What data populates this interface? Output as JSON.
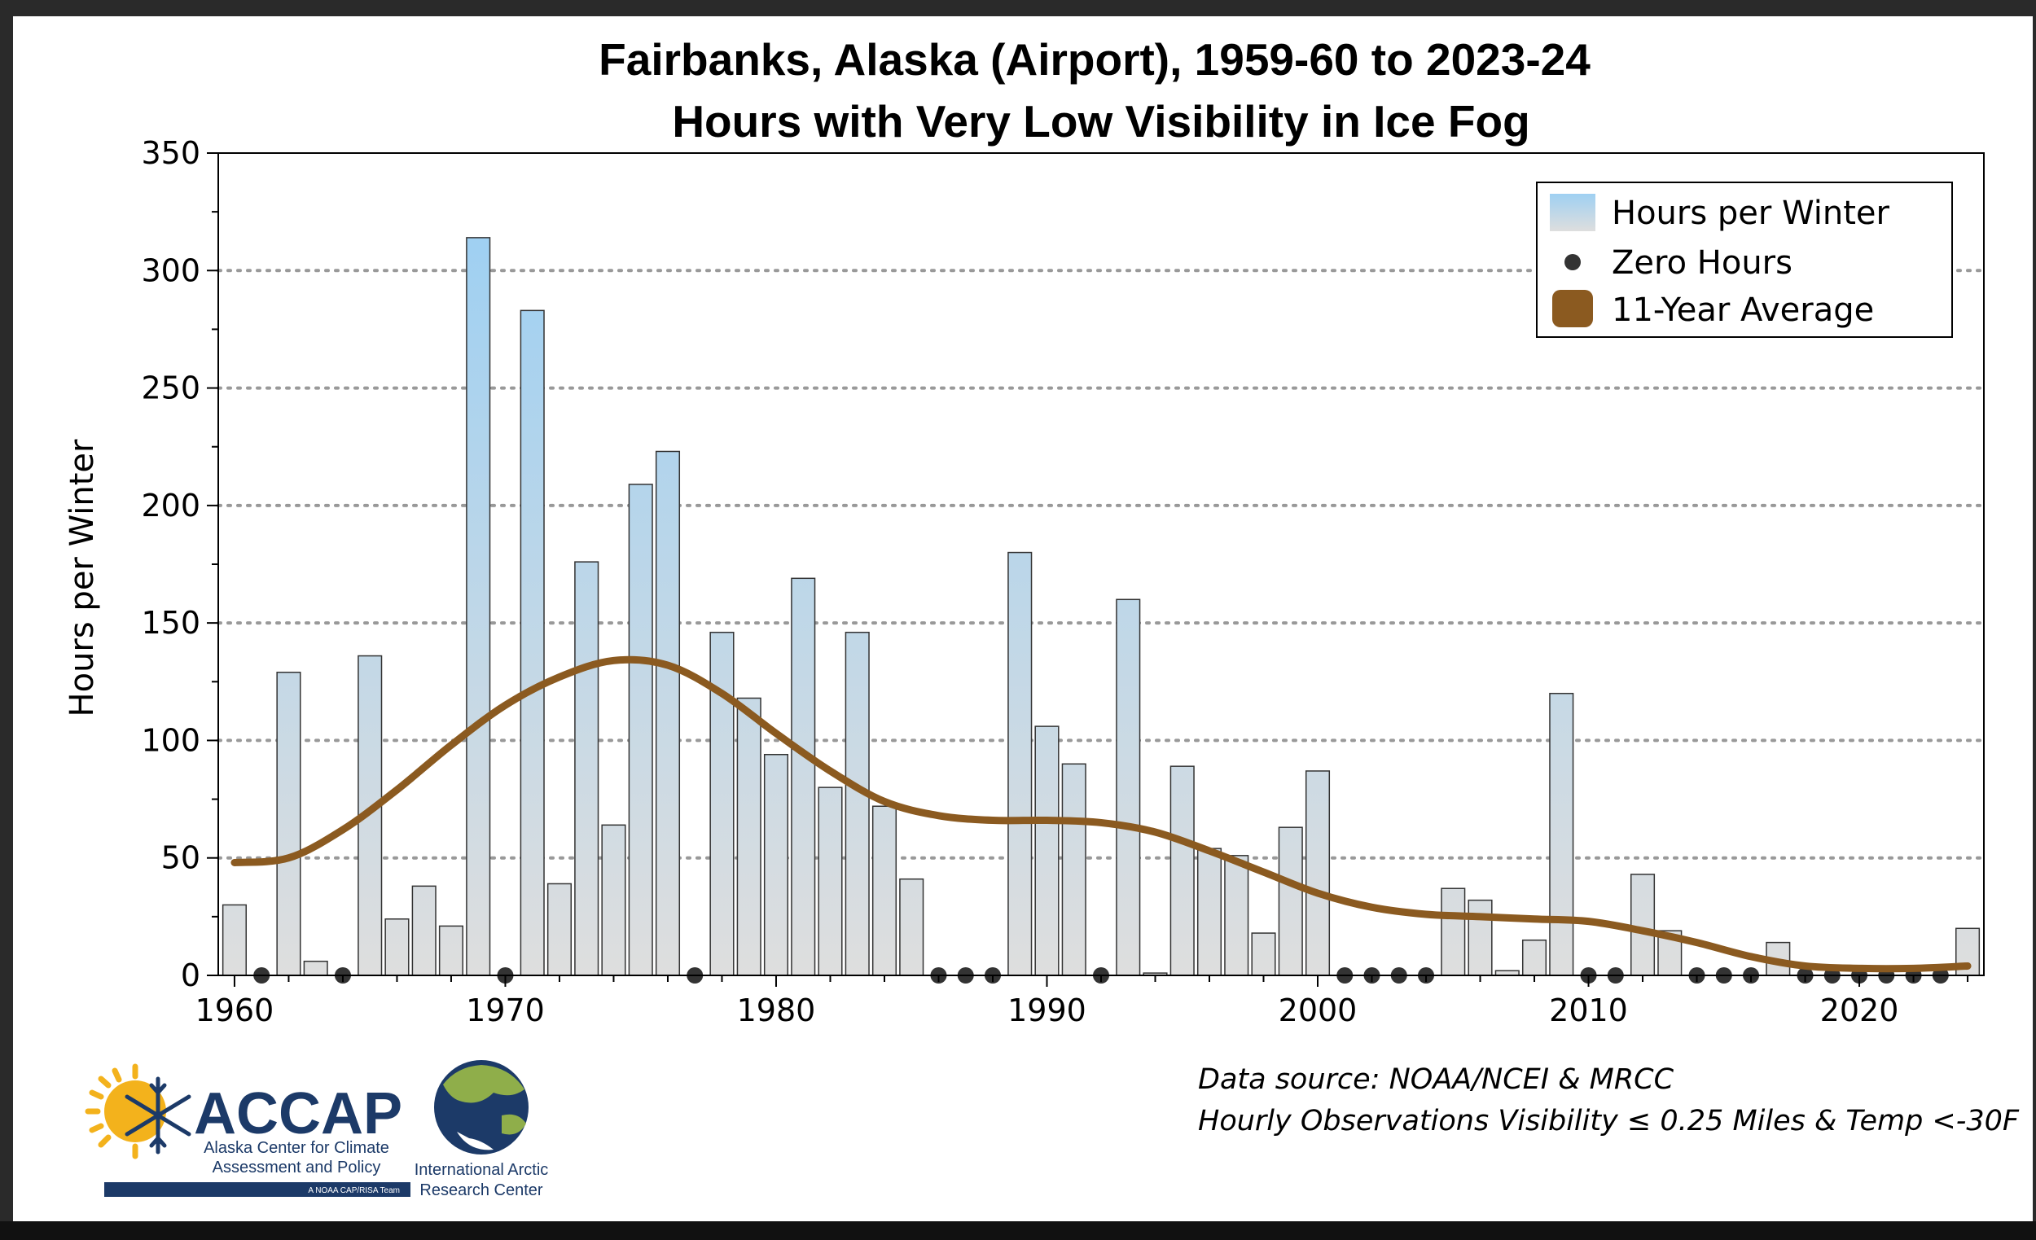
{
  "chart_data": {
    "type": "bar",
    "title": [
      "Fairbanks, Alaska (Airport), 1959-60 to 2023-24",
      "Hours with Very Low Visibility in Ice Fog"
    ],
    "ylabel": "Hours per Winter",
    "xlabel": "",
    "ylim": [
      0,
      350
    ],
    "xlim": [
      1959.4,
      2024.6
    ],
    "yticks": [
      0,
      50,
      100,
      150,
      200,
      250,
      300,
      350
    ],
    "xticks": [
      1960,
      1970,
      1980,
      1990,
      2000,
      2010,
      2020
    ],
    "grid": "horizontal dotted",
    "legend": {
      "placement": "top-right",
      "entries": [
        "Hours per Winter",
        "Zero Hours",
        "11-Year Average"
      ]
    },
    "series": [
      {
        "name": "Hours per Winter",
        "x": [
          1960,
          1961,
          1962,
          1963,
          1964,
          1965,
          1966,
          1967,
          1968,
          1969,
          1970,
          1971,
          1972,
          1973,
          1974,
          1975,
          1976,
          1977,
          1978,
          1979,
          1980,
          1981,
          1982,
          1983,
          1984,
          1985,
          1986,
          1987,
          1988,
          1989,
          1990,
          1991,
          1992,
          1993,
          1994,
          1995,
          1996,
          1997,
          1998,
          1999,
          2000,
          2001,
          2002,
          2003,
          2004,
          2005,
          2006,
          2007,
          2008,
          2009,
          2010,
          2011,
          2012,
          2013,
          2014,
          2015,
          2016,
          2017,
          2018,
          2019,
          2020,
          2021,
          2022,
          2023,
          2024
        ],
        "values": [
          30,
          0,
          129,
          6,
          0,
          136,
          24,
          38,
          21,
          314,
          0,
          283,
          39,
          176,
          64,
          209,
          223,
          0,
          146,
          118,
          94,
          169,
          80,
          146,
          72,
          41,
          0,
          0,
          0,
          180,
          106,
          90,
          0,
          160,
          1,
          89,
          54,
          51,
          18,
          63,
          87,
          0,
          0,
          0,
          0,
          37,
          32,
          2,
          15,
          120,
          0,
          0,
          43,
          19,
          0,
          0,
          0,
          14,
          0,
          0,
          0,
          0,
          0,
          0,
          20
        ]
      },
      {
        "name": "11-Year Average",
        "x": [
          1960,
          1962,
          1964,
          1966,
          1968,
          1970,
          1972,
          1974,
          1976,
          1978,
          1980,
          1982,
          1984,
          1986,
          1988,
          1990,
          1992,
          1994,
          1996,
          1998,
          2000,
          2002,
          2004,
          2006,
          2008,
          2010,
          2012,
          2014,
          2016,
          2018,
          2020,
          2022,
          2024
        ],
        "values": [
          48,
          50,
          62,
          79,
          98,
          115,
          127,
          134,
          132,
          120,
          103,
          87,
          74,
          68,
          66,
          66,
          65,
          61,
          53,
          44,
          35,
          29,
          26,
          25,
          24,
          23,
          19,
          14,
          8,
          4,
          3,
          3,
          4
        ]
      }
    ],
    "colors": {
      "bar_top": "#9fd0f2",
      "bar_bottom": "#dedede",
      "bar_edge": "#333333",
      "zero_marker": "#333333",
      "average_line": "#8b5a20",
      "grid": "#999999"
    }
  },
  "source": {
    "line1": "Data source: NOAA/NCEI & MRCC",
    "line2": "Hourly Observations Visibility ≤ 0.25 Miles & Temp <-30F"
  },
  "logos": {
    "accap": {
      "name": "ACCAP",
      "line1": "Alaska Center for Climate",
      "line2": "Assessment and Policy",
      "tagline": "A NOAA CAP/RISA Team"
    },
    "iarc": {
      "line1": "International Arctic",
      "line2": "Research Center"
    }
  }
}
